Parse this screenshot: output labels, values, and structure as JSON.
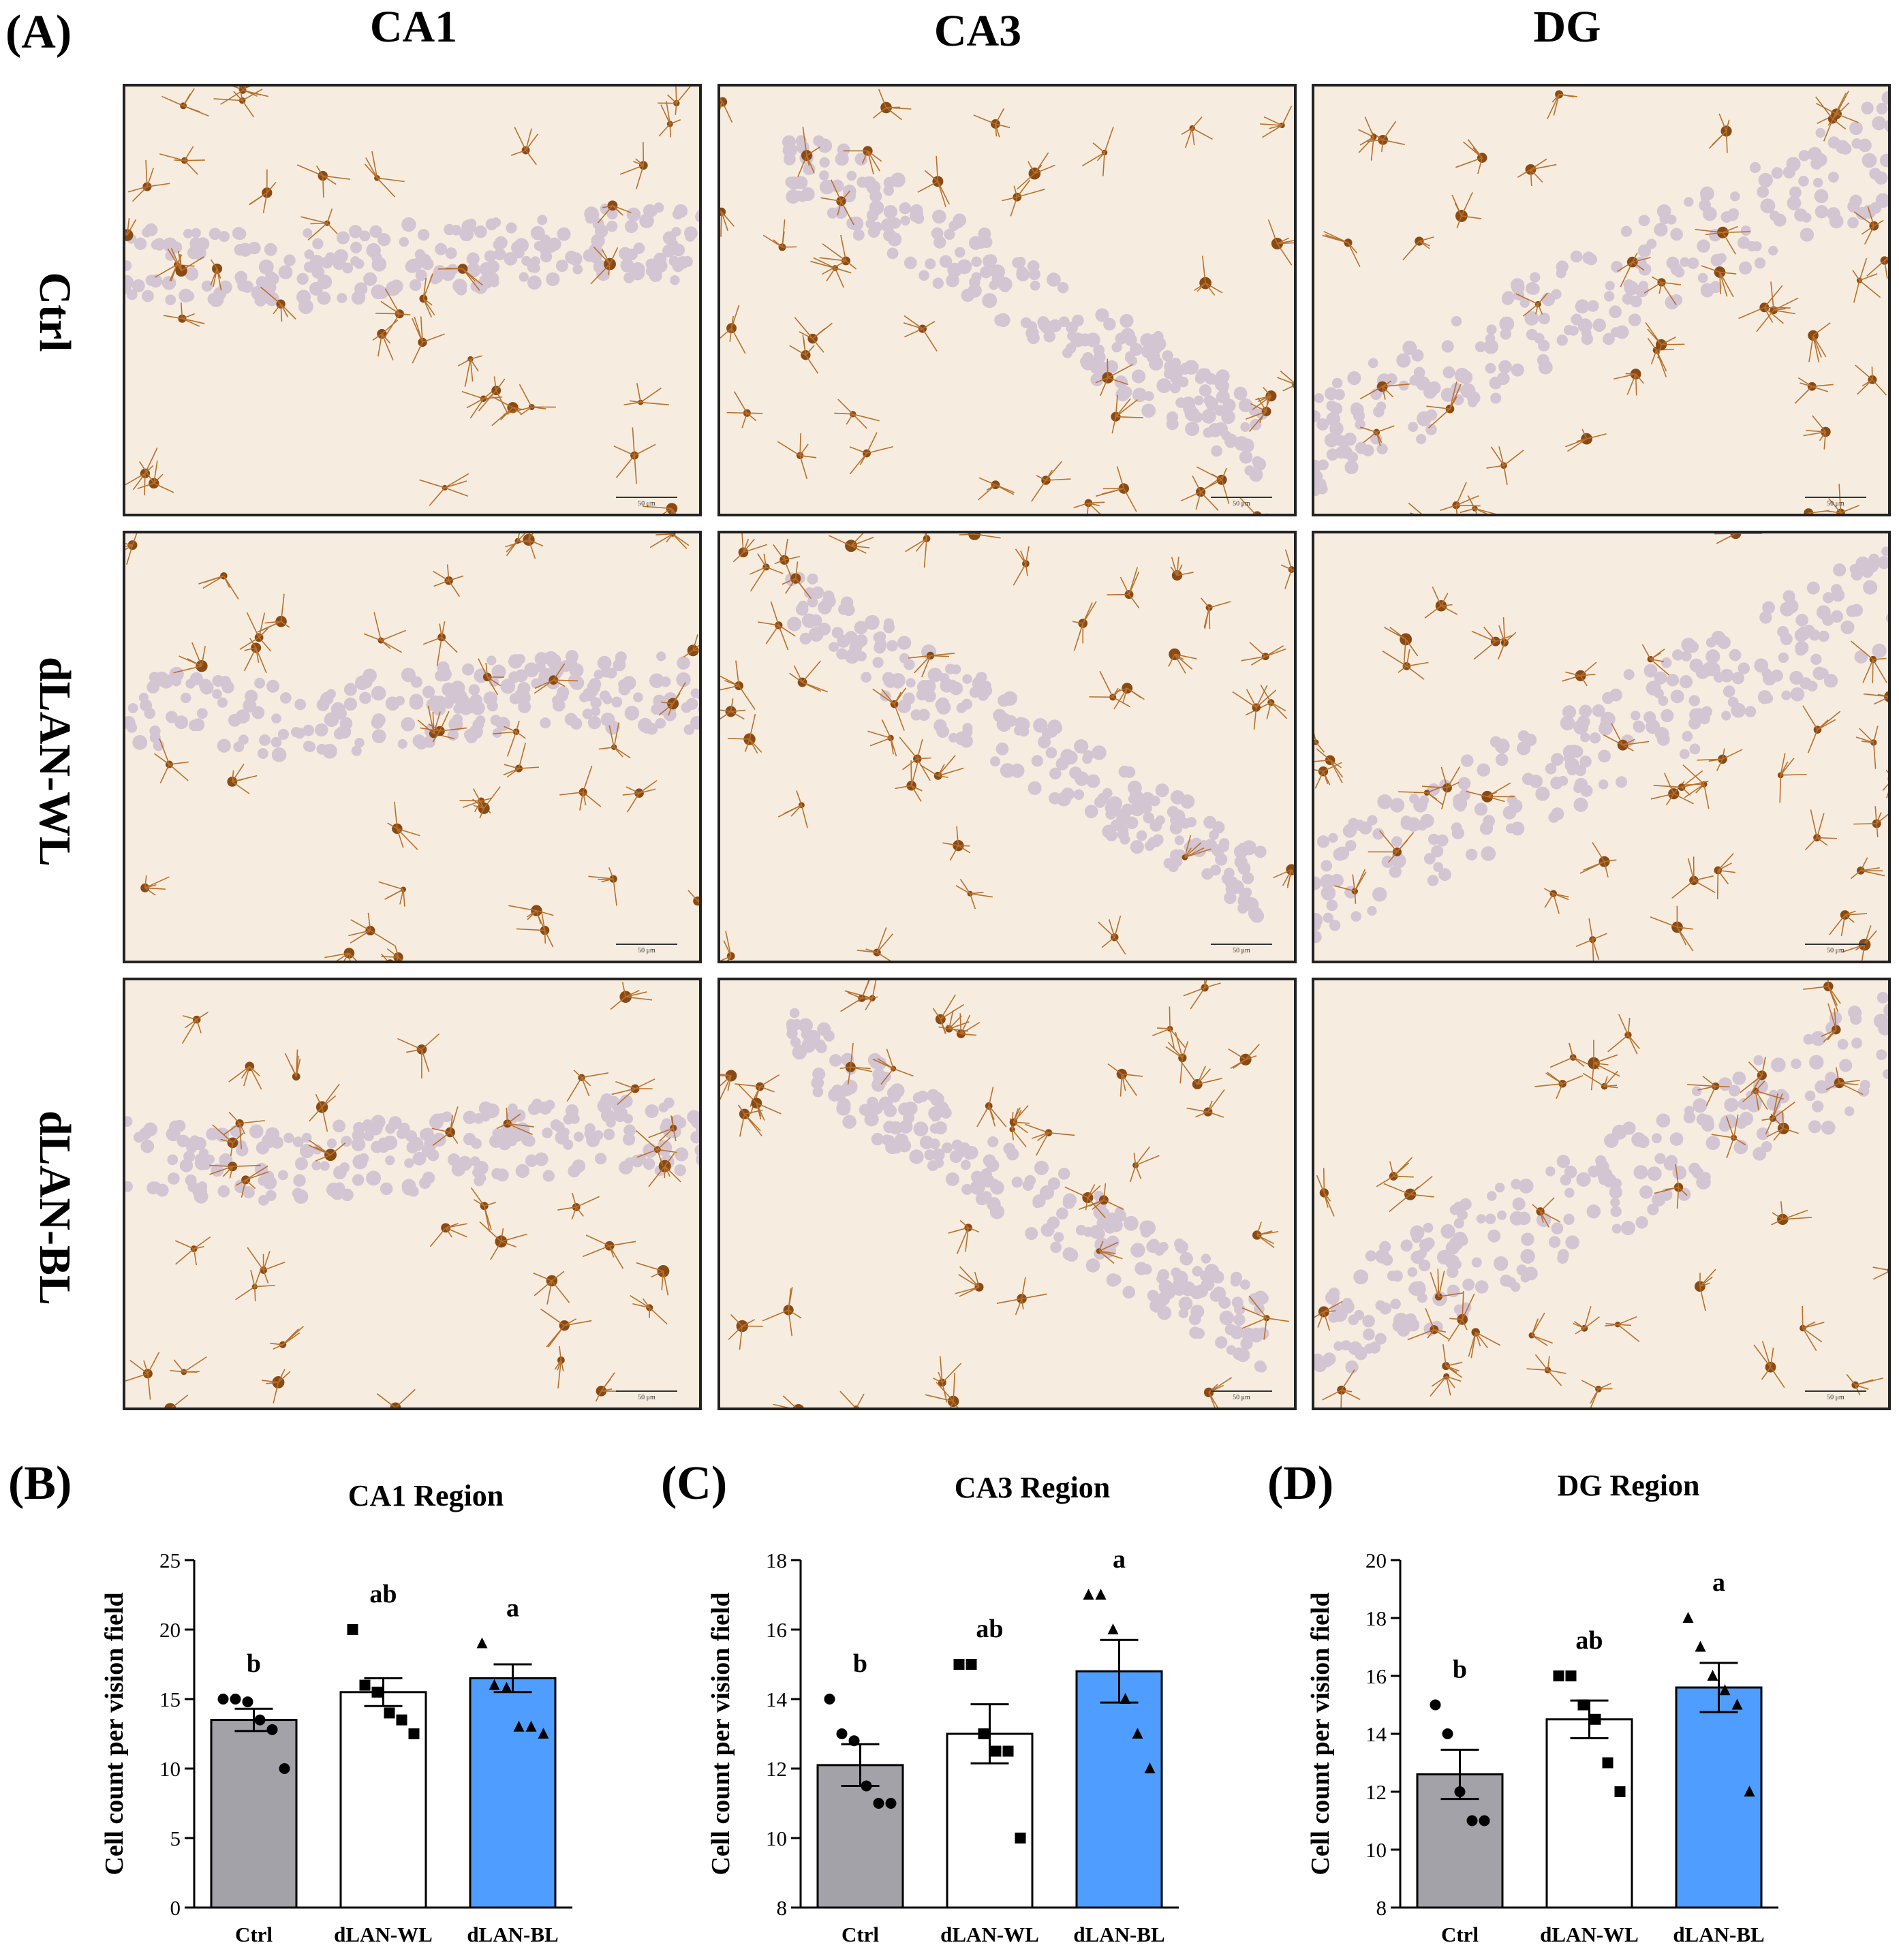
{
  "panel_labels": {
    "a": "(A)",
    "b": "(B)",
    "c": "(C)",
    "d": "(D)"
  },
  "micrograph_grid": {
    "columns": [
      "CA1",
      "CA3",
      "DG"
    ],
    "rows": [
      "Ctrl",
      "dLAN-WL",
      "dLAN-BL"
    ],
    "scale_bar_label": "50 μm",
    "colors": {
      "background": "#f6ede0",
      "microglia": "#b8702c",
      "nuclei": "#b9a6c9"
    }
  },
  "chart_data": [
    {
      "type": "bar",
      "title": "CA1 Region",
      "ylabel": "Cell count per vision field",
      "categories": [
        "Ctrl",
        "dLAN-WL",
        "dLAN-BL"
      ],
      "ylim": [
        0,
        25
      ],
      "yticks": [
        0,
        5,
        10,
        15,
        20,
        25
      ],
      "values": [
        13.5,
        15.5,
        16.5
      ],
      "sem": [
        0.8,
        1.0,
        1.0
      ],
      "letters": [
        "b",
        "ab",
        "a"
      ],
      "points": [
        [
          15,
          15,
          14.8,
          13.5,
          12.8,
          10
        ],
        [
          20,
          16,
          15.5,
          14,
          13.5,
          12.5
        ],
        [
          19,
          16,
          15.8,
          13,
          13,
          12.5
        ]
      ],
      "markers": [
        "circle",
        "square",
        "triangle"
      ],
      "colors": [
        "#a2a2a8",
        "#ffffff",
        "#4f9eff"
      ]
    },
    {
      "type": "bar",
      "title": "CA3 Region",
      "ylabel": "Cell count per vision field",
      "categories": [
        "Ctrl",
        "dLAN-WL",
        "dLAN-BL"
      ],
      "ylim": [
        8,
        18
      ],
      "yticks": [
        8,
        10,
        12,
        14,
        16,
        18
      ],
      "values": [
        12.1,
        13.0,
        14.8
      ],
      "sem": [
        0.6,
        0.85,
        0.9
      ],
      "letters": [
        "b",
        "ab",
        "a"
      ],
      "points": [
        [
          14,
          13,
          12.8,
          11.5,
          11,
          11
        ],
        [
          15,
          15,
          13,
          12.5,
          12.5,
          10
        ],
        [
          17,
          17,
          16,
          14,
          13,
          12
        ]
      ],
      "markers": [
        "circle",
        "square",
        "triangle"
      ],
      "colors": [
        "#a2a2a8",
        "#ffffff",
        "#4f9eff"
      ]
    },
    {
      "type": "bar",
      "title": "DG Region",
      "ylabel": "Cell count per vision field",
      "categories": [
        "Ctrl",
        "dLAN-WL",
        "dLAN-BL"
      ],
      "ylim": [
        8,
        20
      ],
      "yticks": [
        8,
        10,
        12,
        14,
        16,
        18,
        20
      ],
      "values": [
        12.6,
        14.5,
        15.6
      ],
      "sem": [
        0.85,
        0.65,
        0.85
      ],
      "letters": [
        "b",
        "ab",
        "a"
      ],
      "points": [
        [
          15,
          14,
          12,
          11,
          11
        ],
        [
          16,
          16,
          15,
          14.5,
          13,
          12
        ],
        [
          18,
          17,
          16,
          15.5,
          15,
          12
        ]
      ],
      "markers": [
        "circle",
        "square",
        "triangle"
      ],
      "colors": [
        "#a2a2a8",
        "#ffffff",
        "#4f9eff"
      ]
    }
  ]
}
